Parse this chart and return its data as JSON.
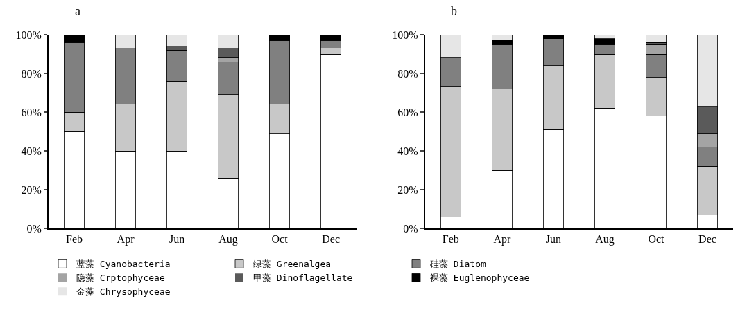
{
  "chart_data": [
    {
      "type": "bar",
      "title": "a",
      "stacked": true,
      "categories": [
        "Feb",
        "Apr",
        "Jun",
        "Aug",
        "Oct",
        "Dec"
      ],
      "ylim": [
        0,
        100
      ],
      "yticks": [
        {
          "value": 0,
          "label": "0%"
        },
        {
          "value": 20,
          "label": "20%"
        },
        {
          "value": 40,
          "label": "40%"
        },
        {
          "value": 60,
          "label": "60%"
        },
        {
          "value": 80,
          "label": "80%"
        },
        {
          "value": 100,
          "label": "100%"
        }
      ],
      "legend": "bottom",
      "series": [
        {
          "name": "蓝藻 Cyanobacteria",
          "color": "#ffffff",
          "values": [
            50,
            40,
            40,
            26,
            49,
            90
          ]
        },
        {
          "name": "绿藻 Greenalgea",
          "color": "#c8c8c8",
          "values": [
            10,
            24,
            36,
            43,
            15,
            3
          ]
        },
        {
          "name": "硅藻 Diatom",
          "color": "#808080",
          "values": [
            36,
            29,
            16,
            17,
            33,
            4
          ]
        },
        {
          "name": "隐藻 Crptophyceae",
          "color": "#a4a4a4",
          "values": [
            0,
            0,
            0,
            2,
            0,
            0
          ]
        },
        {
          "name": "甲藻 Dinoflagellate",
          "color": "#5a5a5a",
          "values": [
            0,
            0,
            2,
            5,
            0,
            0
          ]
        },
        {
          "name": "裸藻 Euglenophyceae",
          "color": "#000000",
          "values": [
            4,
            0,
            0,
            0,
            3,
            3
          ]
        },
        {
          "name": "金藻 Chrysophyceae",
          "color": "#e6e6e6",
          "values": [
            0,
            7,
            6,
            7,
            0,
            0
          ]
        }
      ]
    },
    {
      "type": "bar",
      "title": "b",
      "stacked": true,
      "categories": [
        "Feb",
        "Apr",
        "Jun",
        "Aug",
        "Oct",
        "Dec"
      ],
      "ylim": [
        0,
        100
      ],
      "yticks": [
        {
          "value": 0,
          "label": "0%"
        },
        {
          "value": 20,
          "label": "20%"
        },
        {
          "value": 40,
          "label": "40%"
        },
        {
          "value": 60,
          "label": "60%"
        },
        {
          "value": 80,
          "label": "80%"
        },
        {
          "value": 100,
          "label": "100%"
        }
      ],
      "series": [
        {
          "color": "#ffffff",
          "values": [
            6,
            30,
            51,
            62,
            58,
            7
          ]
        },
        {
          "color": "#c8c8c8",
          "values": [
            67,
            42,
            33,
            28,
            20,
            25
          ]
        },
        {
          "color": "#808080",
          "values": [
            15,
            23,
            14,
            5,
            12,
            10
          ]
        },
        {
          "color": "#a4a4a4",
          "values": [
            0,
            0,
            0,
            0,
            5,
            7
          ]
        },
        {
          "color": "#5a5a5a",
          "values": [
            0,
            0,
            0,
            0,
            1,
            14
          ]
        },
        {
          "color": "#000000",
          "values": [
            0,
            2,
            2,
            3,
            0,
            0
          ]
        },
        {
          "color": "#e6e6e6",
          "values": [
            12,
            3,
            0,
            2,
            4,
            37
          ]
        }
      ]
    }
  ]
}
